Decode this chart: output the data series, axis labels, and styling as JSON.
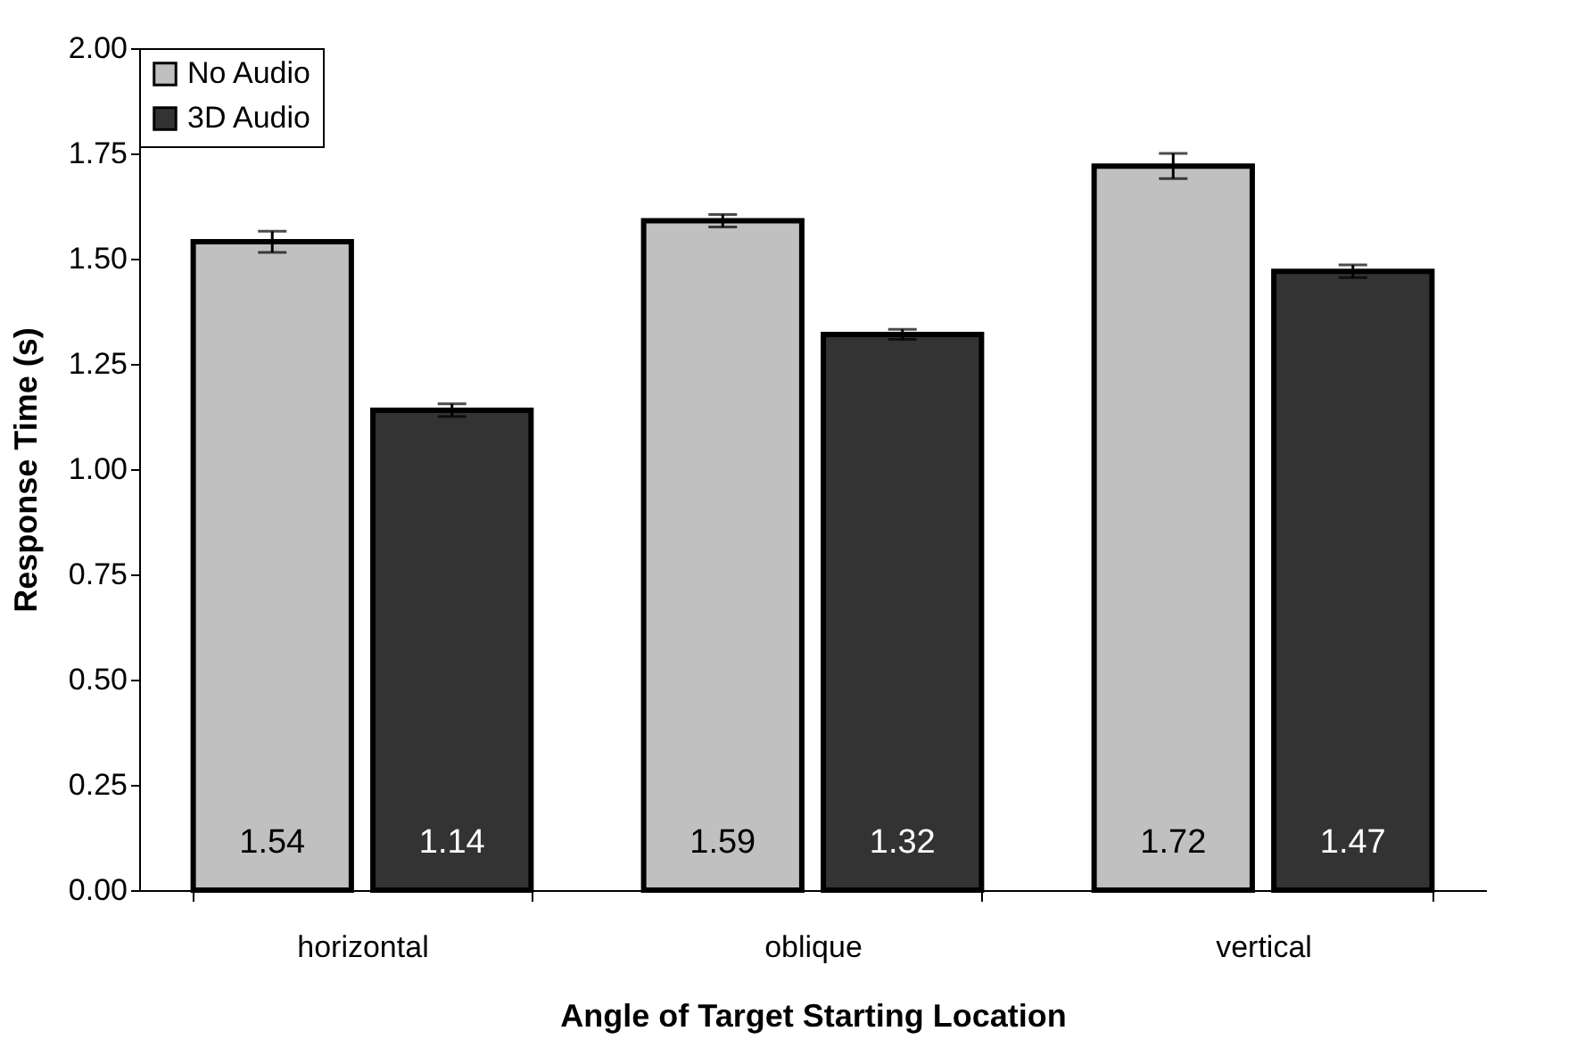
{
  "chart_data": {
    "type": "bar",
    "xlabel": "Angle of Target Starting Location",
    "ylabel": "Response Time (s)",
    "categories": [
      "horizontal",
      "oblique",
      "vertical"
    ],
    "series": [
      {
        "name": "No Audio",
        "color": "#c0c0c0",
        "values": [
          1.54,
          1.59,
          1.72
        ],
        "errors": [
          0.025,
          0.015,
          0.03
        ]
      },
      {
        "name": "3D Audio",
        "color": "#333333",
        "values": [
          1.14,
          1.32,
          1.47
        ],
        "errors": [
          0.015,
          0.012,
          0.015
        ]
      }
    ],
    "ylim": [
      0,
      2
    ],
    "yticks": [
      {
        "value": 0,
        "label": "0.00"
      },
      {
        "value": 0.25,
        "label": "0.25"
      },
      {
        "value": 0.5,
        "label": "0.50"
      },
      {
        "value": 0.75,
        "label": "0.75"
      },
      {
        "value": 1,
        "label": "1.00"
      },
      {
        "value": 1.25,
        "label": "1.25"
      },
      {
        "value": 1.5,
        "label": "1.50"
      },
      {
        "value": 1.75,
        "label": "1.75"
      },
      {
        "value": 2,
        "label": "2.00"
      }
    ],
    "data_labels": true,
    "legend": "top left",
    "grid": false
  }
}
